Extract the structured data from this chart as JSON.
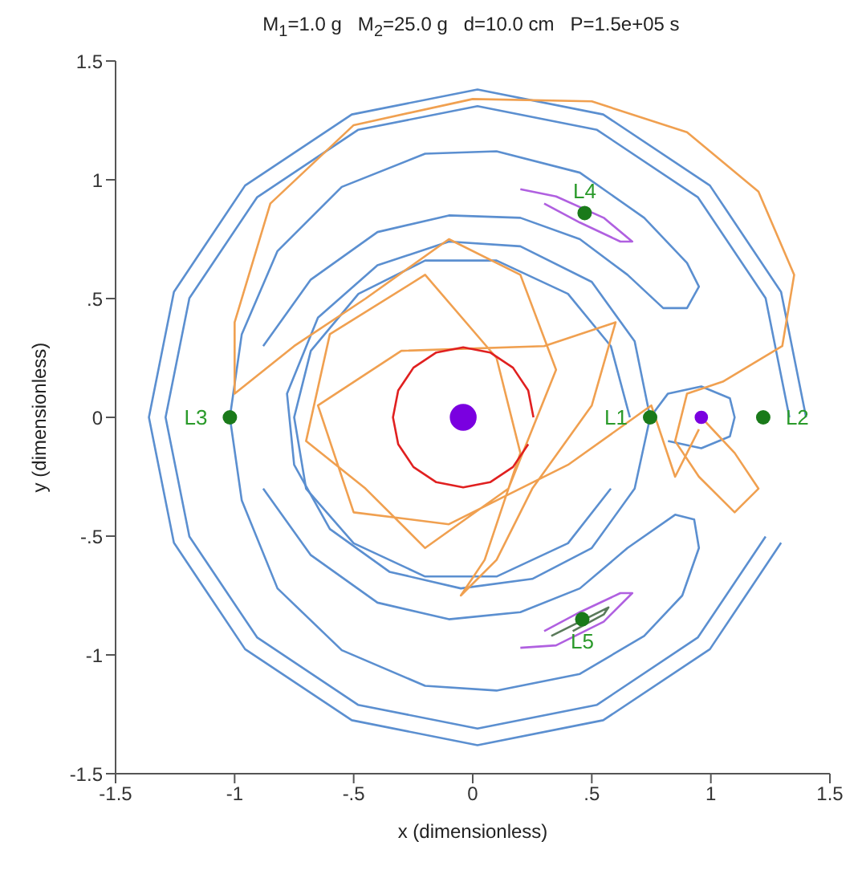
{
  "chart_data": {
    "type": "line",
    "title": "M$_{1}$=1.0 g   M$_{2}$=25.0 g   d=10.0 cm   P=1.5e+05 s",
    "xlabel": "x (dimensionless)",
    "ylabel": "y (dimensionless)",
    "xlim": [
      -1.5,
      1.5
    ],
    "ylim": [
      -1.5,
      1.5
    ],
    "xticks": [
      -1.5,
      -1,
      {
        "value": -0.5,
        "label": "-.5"
      },
      0,
      {
        "value": 0.5,
        "label": ".5"
      },
      1,
      1.5
    ],
    "yticks": [
      -1.5,
      -1,
      {
        "value": -0.5,
        "label": "-.5"
      },
      0,
      {
        "value": 0.5,
        "label": ".5"
      },
      1,
      1.5
    ],
    "series": [
      {
        "color": "#5b8fd0",
        "x": [
          1.4,
          1.295,
          0.996,
          0.548,
          0.02,
          -0.508,
          -0.956,
          -1.255,
          -1.36,
          -1.255,
          -0.956,
          -0.508,
          0.02,
          0.548,
          0.996,
          1.295
        ],
        "values": [
          0,
          0.528,
          0.976,
          1.275,
          1.38,
          1.275,
          0.976,
          0.528,
          0,
          -0.528,
          -0.976,
          -1.275,
          -1.38,
          -1.275,
          -0.976,
          -0.528
        ]
      },
      {
        "color": "#5b8fd0",
        "x": [
          1.33,
          1.23,
          0.946,
          0.522,
          0.02,
          -0.482,
          -0.906,
          -1.19,
          -1.29,
          -1.19,
          -0.906,
          -0.482,
          0.02,
          0.522,
          0.946,
          1.23
        ],
        "values": [
          0,
          0.502,
          0.926,
          1.21,
          1.31,
          1.21,
          0.926,
          0.502,
          0,
          -0.502,
          -0.926,
          -1.21,
          -1.31,
          -1.21,
          -0.926,
          -0.502
        ]
      },
      {
        "color": "#5b8fd0",
        "x": [
          -1.02,
          -0.97,
          -0.82,
          -0.55,
          -0.2,
          0.1,
          0.45,
          0.72,
          0.9,
          0.95,
          0.9,
          0.8,
          0.65,
          0.45,
          0.2,
          -0.1,
          -0.4,
          -0.68,
          -0.88
        ],
        "values": [
          0,
          0.35,
          0.7,
          0.97,
          1.11,
          1.12,
          1.03,
          0.84,
          0.65,
          0.55,
          0.46,
          0.46,
          0.6,
          0.75,
          0.84,
          0.85,
          0.78,
          0.58,
          0.3
        ]
      },
      {
        "color": "#5b8fd0",
        "x": [
          -1.02,
          -0.97,
          -0.82,
          -0.55,
          -0.2,
          0.1,
          0.45,
          0.72,
          0.88,
          0.95,
          0.93,
          0.85,
          0.65,
          0.45,
          0.2,
          -0.1,
          -0.4,
          -0.68,
          -0.88
        ],
        "values": [
          0,
          -0.35,
          -0.72,
          -0.98,
          -1.13,
          -1.15,
          -1.08,
          -0.92,
          -0.75,
          -0.55,
          -0.43,
          -0.41,
          -0.55,
          -0.72,
          -0.82,
          -0.85,
          -0.78,
          -0.58,
          -0.3
        ]
      },
      {
        "color": "#5b8fd0",
        "x": [
          0.745,
          0.68,
          0.5,
          0.2,
          -0.1,
          -0.4,
          -0.65,
          -0.78,
          -0.75,
          -0.6,
          -0.35,
          -0.05,
          0.25,
          0.5,
          0.68,
          0.745,
          0.82,
          0.96,
          1.08,
          1.1,
          1.08,
          0.96,
          0.82
        ],
        "values": [
          0,
          0.32,
          0.57,
          0.72,
          0.74,
          0.64,
          0.42,
          0.1,
          -0.2,
          -0.47,
          -0.65,
          -0.72,
          -0.68,
          -0.55,
          -0.3,
          0,
          0.1,
          0.13,
          0.08,
          0,
          -0.08,
          -0.13,
          -0.1
        ]
      },
      {
        "color": "#5b8fd0",
        "x": [
          0.66,
          0.58,
          0.4,
          0.1,
          -0.2,
          -0.48,
          -0.68,
          -0.75,
          -0.7,
          -0.5,
          -0.2,
          0.1,
          0.4,
          0.58
        ],
        "values": [
          0,
          0.3,
          0.52,
          0.66,
          0.66,
          0.52,
          0.28,
          0,
          -0.3,
          -0.53,
          -0.67,
          -0.67,
          -0.53,
          -0.3
        ]
      },
      {
        "color": "#b060e0",
        "x": [
          0.2,
          0.35,
          0.55,
          0.67,
          0.62,
          0.45,
          0.3
        ],
        "values": [
          0.96,
          0.93,
          0.84,
          0.74,
          0.74,
          0.82,
          0.9
        ]
      },
      {
        "color": "#b060e0",
        "x": [
          0.2,
          0.35,
          0.55,
          0.67,
          0.62,
          0.45,
          0.3
        ],
        "values": [
          -0.97,
          -0.96,
          -0.86,
          -0.74,
          -0.74,
          -0.82,
          -0.9
        ]
      },
      {
        "color": "#5a7a5a",
        "x": [
          0.33,
          0.45,
          0.57,
          0.55,
          0.42
        ],
        "values": [
          -0.92,
          -0.86,
          -0.8,
          -0.83,
          -0.9
        ]
      },
      {
        "color": "#f0a050",
        "x": [
          0.96,
          1.1,
          1.2,
          1.1,
          0.95,
          0.85,
          0.9,
          1.05,
          1.3,
          1.35,
          1.2,
          0.9,
          0.5,
          0,
          -0.5,
          -0.85,
          -1.0,
          -1.0,
          -0.75,
          -0.45,
          -0.1,
          0.2,
          0.35,
          0.15,
          -0.2,
          -0.45,
          -0.7,
          -0.6,
          -0.2,
          0.1,
          0.2,
          0.05,
          -0.05,
          0.1,
          0.25,
          0.5,
          0.6,
          0.3,
          -0.3,
          -0.65,
          -0.5,
          -0.1,
          0.4,
          0.75,
          0.85,
          0.95
        ],
        "values": [
          0,
          -0.15,
          -0.3,
          -0.4,
          -0.25,
          -0.1,
          0.1,
          0.15,
          0.3,
          0.6,
          0.95,
          1.2,
          1.33,
          1.34,
          1.23,
          0.9,
          0.4,
          0.1,
          0.3,
          0.5,
          0.75,
          0.6,
          0.2,
          -0.3,
          -0.55,
          -0.3,
          -0.1,
          0.35,
          0.6,
          0.25,
          -0.15,
          -0.6,
          -0.75,
          -0.6,
          -0.3,
          0.05,
          0.4,
          0.3,
          0.28,
          0.05,
          -0.4,
          -0.45,
          -0.2,
          0.05,
          -0.25,
          -0.05
        ]
      },
      {
        "color": "#e02020",
        "x": [
          0.255,
          0.233,
          0.169,
          0.073,
          -0.04,
          -0.153,
          -0.249,
          -0.313,
          -0.335,
          -0.313,
          -0.249,
          -0.153,
          -0.04,
          0.073,
          0.169,
          0.233
        ],
        "values": [
          0,
          0.113,
          0.209,
          0.273,
          0.295,
          0.273,
          0.209,
          0.113,
          0,
          -0.113,
          -0.209,
          -0.273,
          -0.295,
          -0.273,
          -0.209,
          -0.113
        ]
      },
      {
        "type": "bubble",
        "color": "#7a00e0",
        "x": [
          -0.04,
          0.96
        ],
        "values": [
          0,
          0
        ],
        "sizes": [
          1,
          0.25
        ]
      },
      {
        "type": "scatter",
        "color": "#1a7a1a",
        "marker": "circle",
        "x": [
          0.745,
          1.22,
          -1.02,
          0.47,
          0.46
        ],
        "values": [
          0,
          0,
          0,
          0.86,
          -0.85
        ]
      }
    ],
    "annotations": [
      {
        "text": "L1",
        "x": 0.745,
        "y": 0
      },
      {
        "text": "L2",
        "x": 1.22,
        "y": 0
      },
      {
        "text": "L3",
        "x": -1.02,
        "y": 0
      },
      {
        "text": "L4",
        "x": 0.47,
        "y": 0.86
      },
      {
        "text": "L5",
        "x": 0.46,
        "y": -0.85
      }
    ]
  }
}
